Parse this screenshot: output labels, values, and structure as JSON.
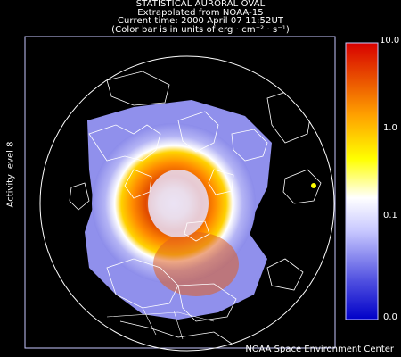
{
  "header": {
    "title": "STATISTICAL AURORAL OVAL",
    "subtitle": "Extrapolated from NOAA-15",
    "time": "Current time: 2000 April 07 11:52UT",
    "units": "(Color bar is in units of erg · cm⁻² · s⁻¹)"
  },
  "side_label": "Activity level 8",
  "colorbar": {
    "labels": [
      "10.0",
      "1.0",
      "0.1",
      "0.0"
    ],
    "stops": [
      "#0000c8",
      "#5a5ae6",
      "#c8c8ff",
      "#ffffff",
      "#ffff00",
      "#ffa000",
      "#e84a00",
      "#d80000"
    ]
  },
  "credit": "NOAA Space Environment Center",
  "colors": {
    "background": "#000000",
    "frame": "#c8c8ff",
    "coastline": "#ffffff",
    "oval_outer": "#9696f0",
    "oval_mid": "#ffffff",
    "oval_peak": "#e85a00"
  }
}
